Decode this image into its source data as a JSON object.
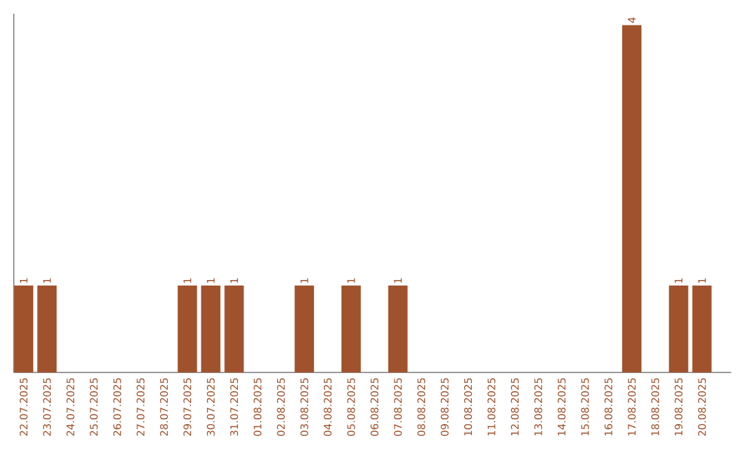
{
  "chart_data": {
    "type": "bar",
    "categories": [
      "22.07.2025",
      "23.07.2025",
      "24.07.2025",
      "25.07.2025",
      "26.07.2025",
      "27.07.2025",
      "28.07.2025",
      "29.07.2025",
      "30.07.2025",
      "31.07.2025",
      "01.08.2025",
      "02.08.2025",
      "03.08.2025",
      "04.08.2025",
      "05.08.2025",
      "06.08.2025",
      "07.08.2025",
      "08.08.2025",
      "09.08.2025",
      "10.08.2025",
      "11.08.2025",
      "12.08.2025",
      "13.08.2025",
      "14.08.2025",
      "15.08.2025",
      "16.08.2025",
      "17.08.2025",
      "18.08.2025",
      "19.08.2025",
      "20.08.2025"
    ],
    "values": [
      1,
      1,
      0,
      0,
      0,
      0,
      0,
      1,
      1,
      1,
      0,
      0,
      1,
      0,
      1,
      0,
      1,
      0,
      0,
      0,
      0,
      0,
      0,
      0,
      0,
      0,
      4,
      0,
      1,
      1
    ],
    "value_labels": [
      "1",
      "1",
      null,
      null,
      null,
      null,
      null,
      "1",
      "1",
      "1",
      null,
      null,
      "1",
      null,
      "1",
      null,
      "1",
      null,
      null,
      null,
      null,
      null,
      null,
      null,
      null,
      null,
      "4",
      null,
      "1",
      "1"
    ],
    "color": "#a0522d",
    "ylim": [
      0,
      4.13
    ]
  }
}
